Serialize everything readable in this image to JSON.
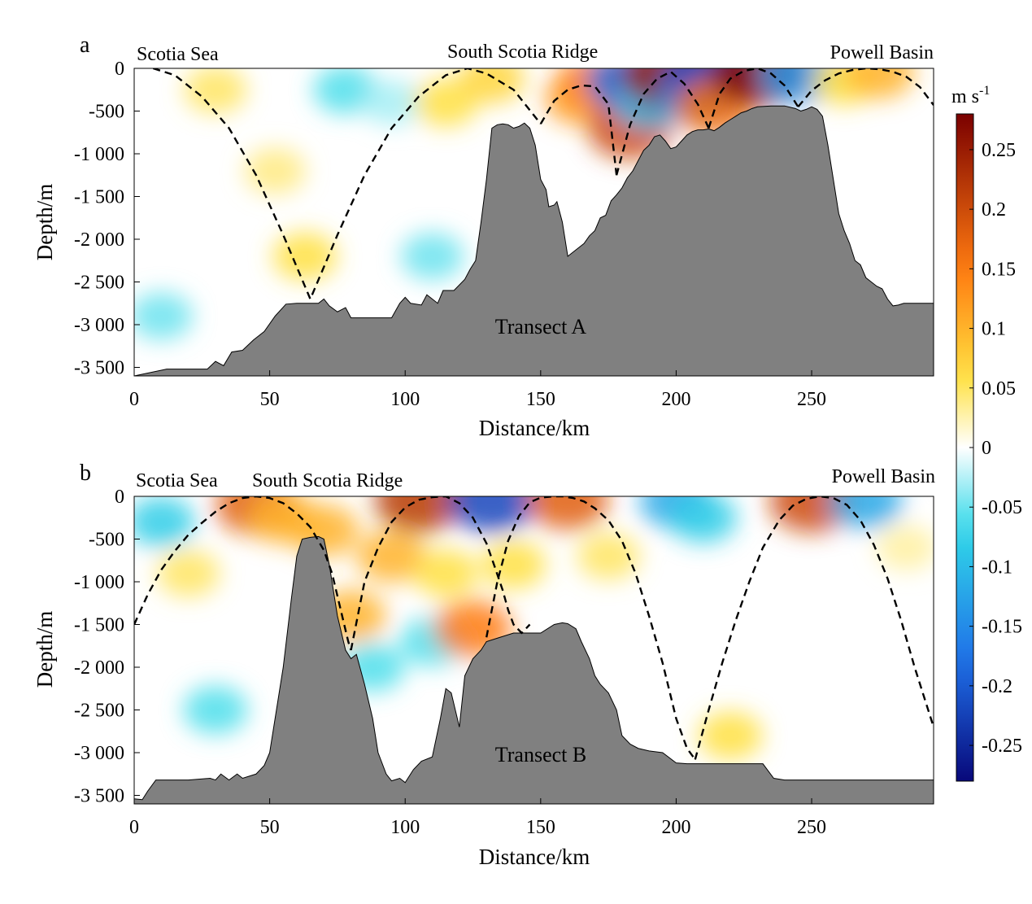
{
  "chart_data": [
    {
      "type": "heatmap",
      "panel_letter": "a",
      "transect_label": "Transect A",
      "region_labels": [
        "Scotia Sea",
        "South Scotia Ridge",
        "Powell Basin"
      ],
      "xlabel": "Distance/km",
      "ylabel": "Depth/m",
      "xlim": [
        0,
        295
      ],
      "ylim": [
        -3600,
        0
      ],
      "x_ticks": [
        0,
        50,
        100,
        150,
        200,
        250
      ],
      "x_tick_labels": [
        "0",
        "50",
        "100",
        "150",
        "200",
        "250"
      ],
      "y_ticks": [
        0,
        -500,
        -1000,
        -1500,
        -2000,
        -2500,
        -3000,
        -3500
      ],
      "y_tick_labels": [
        "0",
        "-500",
        "-1 000",
        "-1 500",
        "-2 000",
        "-2 500",
        "-3 000",
        "-3 500"
      ],
      "bathymetry": {
        "x": [
          0,
          12,
          27,
          30,
          33,
          36,
          40,
          44,
          48,
          52,
          56,
          60,
          64,
          68,
          70,
          72,
          75,
          78,
          80,
          85,
          95,
          98,
          100,
          102,
          106,
          108,
          112,
          114,
          118,
          122,
          124,
          126,
          128,
          130,
          132,
          134,
          136,
          138,
          140,
          142,
          144,
          146,
          148,
          150,
          152,
          153,
          155,
          156,
          158,
          160,
          162,
          164,
          166,
          168,
          170,
          172,
          174,
          176,
          178,
          180,
          182,
          184,
          186,
          188,
          190,
          192,
          194,
          196,
          198,
          200,
          202,
          204,
          206,
          208,
          210,
          212,
          214,
          216,
          218,
          220,
          222,
          224,
          226,
          228,
          230,
          235,
          240,
          244,
          246,
          248,
          250,
          252,
          254,
          256,
          258,
          260,
          262,
          264,
          266,
          268,
          270,
          272,
          274,
          276,
          278,
          280,
          282,
          284,
          286,
          290,
          295
        ],
        "depth": [
          -3600,
          -3520,
          -3520,
          -3430,
          -3480,
          -3320,
          -3300,
          -3180,
          -3080,
          -2900,
          -2760,
          -2750,
          -2750,
          -2750,
          -2700,
          -2780,
          -2850,
          -2800,
          -2920,
          -2920,
          -2920,
          -2750,
          -2680,
          -2750,
          -2770,
          -2650,
          -2750,
          -2600,
          -2600,
          -2470,
          -2350,
          -2250,
          -1800,
          -1300,
          -700,
          -660,
          -650,
          -660,
          -700,
          -680,
          -640,
          -700,
          -900,
          -1300,
          -1420,
          -1620,
          -1600,
          -1560,
          -1800,
          -2200,
          -2150,
          -2100,
          -2050,
          -1960,
          -1900,
          -1750,
          -1720,
          -1550,
          -1480,
          -1400,
          -1280,
          -1200,
          -1080,
          -960,
          -900,
          -800,
          -780,
          -850,
          -940,
          -920,
          -850,
          -780,
          -740,
          -720,
          -720,
          -710,
          -730,
          -690,
          -640,
          -600,
          -560,
          -520,
          -500,
          -470,
          -450,
          -440,
          -440,
          -470,
          -500,
          -480,
          -450,
          -480,
          -560,
          -900,
          -1300,
          -1700,
          -1900,
          -2050,
          -2250,
          -2300,
          -2450,
          -2500,
          -2550,
          -2580,
          -2700,
          -2780,
          -2770,
          -2750,
          -2750,
          -2750,
          -2750
        ]
      },
      "dashed_arcs": [
        {
          "x": [
            7,
            15,
            25,
            35,
            45,
            55,
            65,
            75,
            85,
            95,
            105,
            115,
            123,
            130,
            140,
            150
          ],
          "depth": [
            0,
            -80,
            -330,
            -700,
            -1250,
            -1950,
            -2700,
            -1950,
            -1250,
            -700,
            -330,
            -80,
            0,
            -60,
            -250,
            -650
          ]
        },
        {
          "x": [
            150,
            155,
            160,
            165,
            170,
            175,
            178
          ],
          "depth": [
            -650,
            -380,
            -250,
            -200,
            -210,
            -420,
            -1250
          ]
        },
        {
          "x": [
            178,
            183,
            188,
            193,
            198,
            203,
            208,
            212
          ],
          "depth": [
            -1250,
            -660,
            -300,
            -120,
            -40,
            -180,
            -420,
            -700
          ]
        },
        {
          "x": [
            212,
            216,
            220,
            225,
            230,
            235,
            240,
            245
          ],
          "depth": [
            -700,
            -300,
            -120,
            -30,
            0,
            -60,
            -200,
            -450
          ]
        },
        {
          "x": [
            245,
            250,
            255,
            260,
            265,
            270,
            275,
            280,
            285,
            290,
            295
          ],
          "depth": [
            -450,
            -260,
            -140,
            -60,
            -20,
            0,
            -10,
            -40,
            -100,
            -220,
            -430
          ]
        }
      ],
      "color_blobs": [
        {
          "x": 30,
          "depth": -250,
          "value": 0.05
        },
        {
          "x": 52,
          "depth": -1200,
          "value": 0.04
        },
        {
          "x": 63,
          "depth": -2200,
          "value": 0.06
        },
        {
          "x": 78,
          "depth": -250,
          "value": -0.06
        },
        {
          "x": 95,
          "depth": -400,
          "value": -0.03
        },
        {
          "x": 10,
          "depth": -2900,
          "value": -0.05
        },
        {
          "x": 110,
          "depth": -2200,
          "value": -0.05
        },
        {
          "x": 115,
          "depth": -400,
          "value": 0.06
        },
        {
          "x": 132,
          "depth": -120,
          "value": 0.07
        },
        {
          "x": 165,
          "depth": -350,
          "value": 0.12
        },
        {
          "x": 170,
          "depth": -150,
          "value": 0.14
        },
        {
          "x": 183,
          "depth": -700,
          "value": 0.2
        },
        {
          "x": 182,
          "depth": -150,
          "value": -0.18
        },
        {
          "x": 190,
          "depth": -400,
          "value": -0.1
        },
        {
          "x": 197,
          "depth": -80,
          "value": 0.25
        },
        {
          "x": 207,
          "depth": -300,
          "value": -0.15
        },
        {
          "x": 212,
          "depth": -80,
          "value": -0.22
        },
        {
          "x": 214,
          "depth": -450,
          "value": 0.16
        },
        {
          "x": 230,
          "depth": -50,
          "value": 0.27
        },
        {
          "x": 245,
          "depth": -80,
          "value": -0.14
        },
        {
          "x": 262,
          "depth": -150,
          "value": 0.06
        },
        {
          "x": 275,
          "depth": -50,
          "value": 0.1
        }
      ]
    },
    {
      "type": "heatmap",
      "panel_letter": "b",
      "transect_label": "Transect B",
      "region_labels": [
        "Scotia Sea",
        "South Scotia Ridge",
        "Powell Basin"
      ],
      "xlabel": "Distance/km",
      "ylabel": "Depth/m",
      "xlim": [
        0,
        295
      ],
      "ylim": [
        -3600,
        0
      ],
      "x_ticks": [
        0,
        50,
        100,
        150,
        200,
        250
      ],
      "x_tick_labels": [
        "0",
        "50",
        "100",
        "150",
        "200",
        "250"
      ],
      "y_ticks": [
        0,
        -500,
        -1000,
        -1500,
        -2000,
        -2500,
        -3000,
        -3500
      ],
      "y_tick_labels": [
        "0",
        "-500",
        "-1 000",
        "-1 500",
        "-2 000",
        "-2 500",
        "-3 000",
        "-3 500"
      ],
      "bathymetry": {
        "x": [
          0,
          3,
          5,
          8,
          20,
          28,
          30,
          32,
          35,
          38,
          40,
          45,
          48,
          50,
          52,
          55,
          58,
          60,
          62,
          65,
          68,
          70,
          72,
          75,
          78,
          80,
          82,
          85,
          88,
          90,
          93,
          95,
          98,
          100,
          103,
          106,
          110,
          113,
          115,
          117,
          120,
          122,
          125,
          128,
          130,
          135,
          140,
          145,
          150,
          155,
          158,
          160,
          163,
          165,
          168,
          170,
          172,
          175,
          178,
          180,
          183,
          186,
          190,
          195,
          200,
          204,
          208,
          215,
          225,
          232,
          236,
          240,
          250,
          260,
          270,
          280,
          295
        ],
        "depth": [
          -3540,
          -3550,
          -3450,
          -3320,
          -3320,
          -3300,
          -3320,
          -3250,
          -3320,
          -3250,
          -3300,
          -3250,
          -3150,
          -3000,
          -2600,
          -2000,
          -1200,
          -700,
          -500,
          -480,
          -470,
          -500,
          -800,
          -1400,
          -1800,
          -1900,
          -1850,
          -2200,
          -2600,
          -3000,
          -3250,
          -3330,
          -3300,
          -3350,
          -3200,
          -3100,
          -3050,
          -2600,
          -2250,
          -2300,
          -2700,
          -2100,
          -1900,
          -1800,
          -1700,
          -1650,
          -1600,
          -1600,
          -1600,
          -1500,
          -1480,
          -1490,
          -1550,
          -1700,
          -1900,
          -2100,
          -2200,
          -2300,
          -2500,
          -2800,
          -2900,
          -2950,
          -2980,
          -3000,
          -3120,
          -3130,
          -3130,
          -3130,
          -3130,
          -3130,
          -3300,
          -3320,
          -3320,
          -3320,
          -3320,
          -3320,
          -3320
        ]
      },
      "dashed_arcs": [
        {
          "x": [
            0,
            5,
            10,
            15,
            20,
            25,
            30,
            35,
            40,
            45,
            50,
            55,
            60,
            65,
            70,
            73,
            76,
            79,
            80
          ],
          "depth": [
            -1500,
            -1150,
            -860,
            -640,
            -450,
            -310,
            -180,
            -80,
            -20,
            0,
            -20,
            -80,
            -200,
            -360,
            -630,
            -900,
            -1300,
            -1700,
            -1800
          ]
        },
        {
          "x": [
            80,
            85,
            90,
            95,
            100,
            105,
            110,
            115,
            120,
            125,
            130,
            133,
            136,
            138,
            140,
            143,
            146
          ],
          "depth": [
            -1800,
            -1000,
            -600,
            -300,
            -130,
            -40,
            -10,
            0,
            -80,
            -250,
            -550,
            -820,
            -1100,
            -1330,
            -1500,
            -1600,
            -1500
          ]
        },
        {
          "x": [
            130,
            134,
            138,
            142,
            146,
            150,
            155,
            158,
            162,
            166,
            170,
            175,
            180,
            185,
            190,
            195,
            200,
            204,
            207
          ],
          "depth": [
            -1650,
            -1000,
            -520,
            -230,
            -70,
            -15,
            0,
            0,
            -20,
            -60,
            -140,
            -280,
            -520,
            -900,
            -1400,
            -1950,
            -2600,
            -2950,
            -3080
          ]
        },
        {
          "x": [
            207,
            212,
            217,
            222,
            227,
            232,
            238,
            243,
            248,
            253,
            258,
            263,
            268,
            273,
            278,
            283,
            288,
            295
          ],
          "depth": [
            -3080,
            -2500,
            -1950,
            -1450,
            -1000,
            -600,
            -280,
            -110,
            -30,
            0,
            -20,
            -100,
            -280,
            -570,
            -960,
            -1450,
            -2000,
            -2700
          ]
        }
      ],
      "color_blobs": [
        {
          "x": 10,
          "depth": -300,
          "value": -0.08
        },
        {
          "x": 20,
          "depth": -900,
          "value": 0.05
        },
        {
          "x": 30,
          "depth": -2500,
          "value": -0.06
        },
        {
          "x": 45,
          "depth": -100,
          "value": 0.18
        },
        {
          "x": 55,
          "depth": -250,
          "value": 0.1
        },
        {
          "x": 70,
          "depth": -400,
          "value": 0.1
        },
        {
          "x": 80,
          "depth": -1400,
          "value": 0.1
        },
        {
          "x": 88,
          "depth": -2000,
          "value": -0.06
        },
        {
          "x": 95,
          "depth": -700,
          "value": 0.1
        },
        {
          "x": 105,
          "depth": -50,
          "value": 0.22
        },
        {
          "x": 115,
          "depth": -900,
          "value": 0.06
        },
        {
          "x": 110,
          "depth": -1700,
          "value": -0.06
        },
        {
          "x": 125,
          "depth": -1550,
          "value": 0.15
        },
        {
          "x": 132,
          "depth": -50,
          "value": -0.22
        },
        {
          "x": 140,
          "depth": -800,
          "value": 0.06
        },
        {
          "x": 160,
          "depth": -40,
          "value": 0.18
        },
        {
          "x": 175,
          "depth": -700,
          "value": 0.05
        },
        {
          "x": 200,
          "depth": -60,
          "value": -0.12
        },
        {
          "x": 210,
          "depth": -250,
          "value": -0.08
        },
        {
          "x": 220,
          "depth": -2800,
          "value": 0.06
        },
        {
          "x": 250,
          "depth": -60,
          "value": 0.2
        },
        {
          "x": 270,
          "depth": -60,
          "value": -0.12
        },
        {
          "x": 285,
          "depth": -600,
          "value": 0.03
        }
      ]
    }
  ],
  "colorbar": {
    "unit": "m s",
    "unit_superscript": "-1",
    "range": [
      -0.28,
      0.28
    ],
    "ticks": [
      0.25,
      0.2,
      0.15,
      0.1,
      0.05,
      0,
      -0.05,
      -0.1,
      -0.15,
      -0.2,
      -0.25
    ],
    "tick_labels": [
      "0.25",
      "0.2",
      "0.15",
      "0.1",
      "0.05",
      "0",
      "-0.05",
      "-0.1",
      "-0.15",
      "-0.2",
      "-0.25"
    ]
  },
  "colors": {
    "land": "#808080",
    "neg_strong": "#08087a",
    "neg_mid": "#1f6fe8",
    "neg_weak": "#30d8e8",
    "neutral": "#ffffff",
    "pos_weak": "#ffe040",
    "pos_mid": "#ff7a10",
    "pos_strong": "#7a0000",
    "dash": "#000000"
  }
}
